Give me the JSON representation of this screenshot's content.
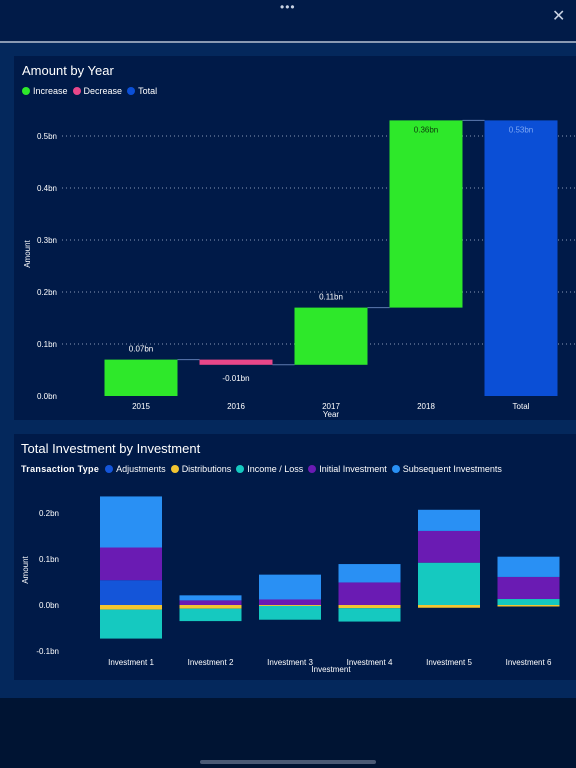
{
  "header": {
    "more_label": "•••",
    "close_label": "✕"
  },
  "colors": {
    "increase": "#2ee82a",
    "decrease": "#e8478a",
    "total": "#0b4fd6",
    "adjustments": "#1455d9",
    "distributions": "#f2c531",
    "income_loss": "#15c9c0",
    "initial_investment": "#6a1bb3",
    "subsequent_investments": "#2990f4"
  },
  "waterfall": {
    "title": "Amount by Year",
    "legend": [
      {
        "label": "Increase",
        "color": "#2ee82a"
      },
      {
        "label": "Decrease",
        "color": "#e8478a"
      },
      {
        "label": "Total",
        "color": "#0b4fd6"
      }
    ],
    "ylabel": "Amount",
    "xlabel": "Year"
  },
  "stacked": {
    "title": "Total Investment by Investment",
    "legend_title": "Transaction Type",
    "legend": [
      {
        "label": "Adjustments",
        "color": "#1455d9"
      },
      {
        "label": "Distributions",
        "color": "#f2c531"
      },
      {
        "label": "Income / Loss",
        "color": "#15c9c0"
      },
      {
        "label": "Initial Investment",
        "color": "#6a1bb3"
      },
      {
        "label": "Subsequent Investments",
        "color": "#2990f4"
      }
    ],
    "ylabel": "Amount",
    "xlabel": "Investment"
  },
  "chart_data": [
    {
      "type": "bar",
      "subtype": "waterfall",
      "title": "Amount by Year",
      "xlabel": "Year",
      "ylabel": "Amount",
      "categories": [
        "2015",
        "2016",
        "2017",
        "2018",
        "Total"
      ],
      "deltas": [
        0.07,
        -0.01,
        0.11,
        0.36,
        0.53
      ],
      "kinds": [
        "increase",
        "decrease",
        "increase",
        "increase",
        "total"
      ],
      "data_labels": [
        "0.07bn",
        "-0.01bn",
        "0.11bn",
        "0.36bn",
        "0.53bn"
      ],
      "yticks": [
        "0.0bn",
        "0.1bn",
        "0.2bn",
        "0.3bn",
        "0.4bn",
        "0.5bn"
      ],
      "ytick_values": [
        0,
        0.1,
        0.2,
        0.3,
        0.4,
        0.5
      ],
      "ylim": [
        0,
        0.53
      ],
      "unit": "bn",
      "grid": true,
      "legend": "top-left"
    },
    {
      "type": "bar",
      "subtype": "stacked",
      "title": "Total Investment by Investment",
      "xlabel": "Investment",
      "ylabel": "Amount",
      "categories": [
        "Investment 1",
        "Investment 2",
        "Investment 3",
        "Investment 4",
        "Investment 5",
        "Investment 6"
      ],
      "series": [
        {
          "name": "Adjustments",
          "color": "#1455d9",
          "values": [
            0.054,
            0.0,
            0.0,
            0.0,
            0.0,
            0.0
          ]
        },
        {
          "name": "Distributions",
          "color": "#f2c531",
          "values": [
            -0.01,
            -0.008,
            -0.002,
            -0.007,
            -0.006,
            -0.003
          ]
        },
        {
          "name": "Income / Loss",
          "color": "#15c9c0",
          "values": [
            -0.063,
            -0.027,
            -0.03,
            -0.029,
            0.092,
            0.013
          ]
        },
        {
          "name": "Initial Investment",
          "color": "#6a1bb3",
          "values": [
            0.071,
            0.01,
            0.012,
            0.049,
            0.069,
            0.048
          ]
        },
        {
          "name": "Subsequent Investments",
          "color": "#2990f4",
          "values": [
            0.111,
            0.011,
            0.054,
            0.04,
            0.046,
            0.044
          ]
        }
      ],
      "yticks": [
        "-0.1bn",
        "0.0bn",
        "0.1bn",
        "0.2bn"
      ],
      "ytick_values": [
        -0.1,
        0,
        0.1,
        0.2
      ],
      "ylim": [
        -0.1,
        0.2
      ],
      "unit": "bn",
      "grid": false,
      "legend": "top-left"
    }
  ]
}
